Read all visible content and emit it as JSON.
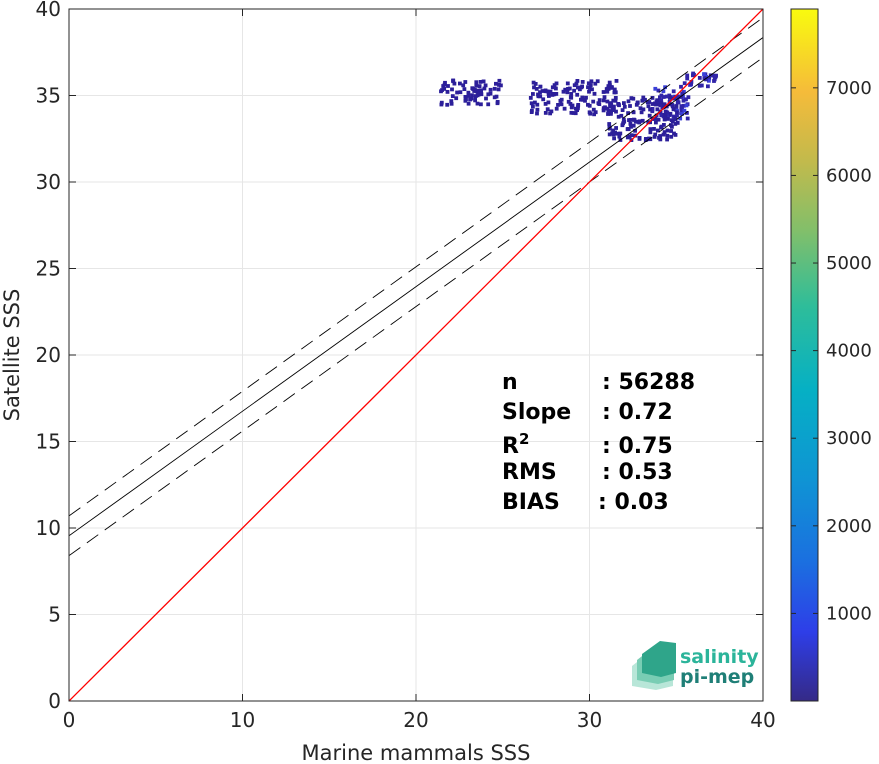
{
  "chart_data": {
    "type": "heatmap",
    "xlabel": "Marine mammals SSS",
    "ylabel": "Satellite SSS",
    "xlim": [
      0,
      40
    ],
    "ylim": [
      0,
      40
    ],
    "x_ticks": [
      "0",
      "10",
      "20",
      "30",
      "40"
    ],
    "y_ticks": [
      "0",
      "5",
      "10",
      "15",
      "20",
      "25",
      "30",
      "35",
      "40"
    ],
    "grid": true,
    "colorbar": {
      "ticks": [
        "1000",
        "2000",
        "3000",
        "4000",
        "5000",
        "6000",
        "7000"
      ],
      "range": [
        0,
        7900
      ],
      "colormap": "parula"
    },
    "identity_line": {
      "slope": 1,
      "intercept": 0,
      "color": "#ff0000"
    },
    "regression_line": {
      "slope": 0.72,
      "intercept": 9.55,
      "color": "#000000"
    },
    "regression_bounds": [
      {
        "slope": 0.72,
        "intercept": 10.7,
        "style": "dashed"
      },
      {
        "slope": 0.72,
        "intercept": 8.4,
        "style": "dashed"
      }
    ],
    "density_clusters": [
      {
        "x": [
          33.5,
          35.6
        ],
        "y": [
          33.5,
          35.4
        ],
        "level": "high"
      },
      {
        "x": [
          35.3,
          37.2
        ],
        "y": [
          35.4,
          36.2
        ],
        "level": "high"
      },
      {
        "x": [
          31.0,
          35.0
        ],
        "y": [
          32.3,
          34.8
        ],
        "level": "low"
      },
      {
        "x": [
          26.5,
          31.5
        ],
        "y": [
          33.8,
          35.8
        ],
        "level": "low"
      },
      {
        "x": [
          21.3,
          24.8
        ],
        "y": [
          34.3,
          35.8
        ],
        "level": "low"
      }
    ],
    "stats": [
      {
        "label": "n",
        "value": ": 56288"
      },
      {
        "label": "Slope",
        "value": ": 0.72"
      },
      {
        "label": "R",
        "sup": "2",
        "value": ": 0.75"
      },
      {
        "label": "RMS",
        "value": ": 0.53"
      },
      {
        "label": "BIAS",
        "value": ": 0.03"
      }
    ]
  },
  "logo": {
    "line1": "salinity",
    "line2": "pi-mep"
  }
}
